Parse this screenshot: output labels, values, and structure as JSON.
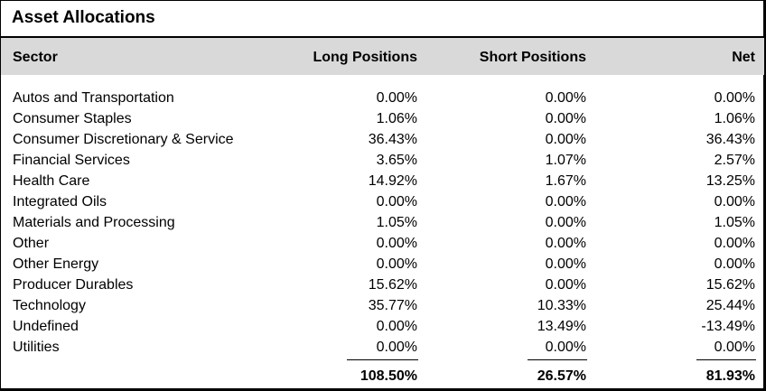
{
  "title": "Asset Allocations",
  "columns": {
    "sector": "Sector",
    "long": "Long Positions",
    "short": "Short Positions",
    "net": "Net"
  },
  "rows": [
    {
      "sector": "Autos and Transportation",
      "long": "0.00%",
      "short": "0.00%",
      "net": "0.00%"
    },
    {
      "sector": "Consumer Staples",
      "long": "1.06%",
      "short": "0.00%",
      "net": "1.06%"
    },
    {
      "sector": "Consumer Discretionary & Service",
      "long": "36.43%",
      "short": "0.00%",
      "net": "36.43%"
    },
    {
      "sector": "Financial Services",
      "long": "3.65%",
      "short": "1.07%",
      "net": "2.57%"
    },
    {
      "sector": "Health Care",
      "long": "14.92%",
      "short": "1.67%",
      "net": "13.25%"
    },
    {
      "sector": "Integrated Oils",
      "long": "0.00%",
      "short": "0.00%",
      "net": "0.00%"
    },
    {
      "sector": "Materials and Processing",
      "long": "1.05%",
      "short": "0.00%",
      "net": "1.05%"
    },
    {
      "sector": "Other",
      "long": "0.00%",
      "short": "0.00%",
      "net": "0.00%"
    },
    {
      "sector": "Other Energy",
      "long": "0.00%",
      "short": "0.00%",
      "net": "0.00%"
    },
    {
      "sector": "Producer Durables",
      "long": "15.62%",
      "short": "0.00%",
      "net": "15.62%"
    },
    {
      "sector": "Technology",
      "long": "35.77%",
      "short": "10.33%",
      "net": "25.44%"
    },
    {
      "sector": "Undefined",
      "long": "0.00%",
      "short": "13.49%",
      "net": "-13.49%"
    },
    {
      "sector": "Utilities",
      "long": "0.00%",
      "short": "0.00%",
      "net": "0.00%"
    }
  ],
  "totals": {
    "long": "108.50%",
    "short": "26.57%",
    "net": "81.93%"
  }
}
